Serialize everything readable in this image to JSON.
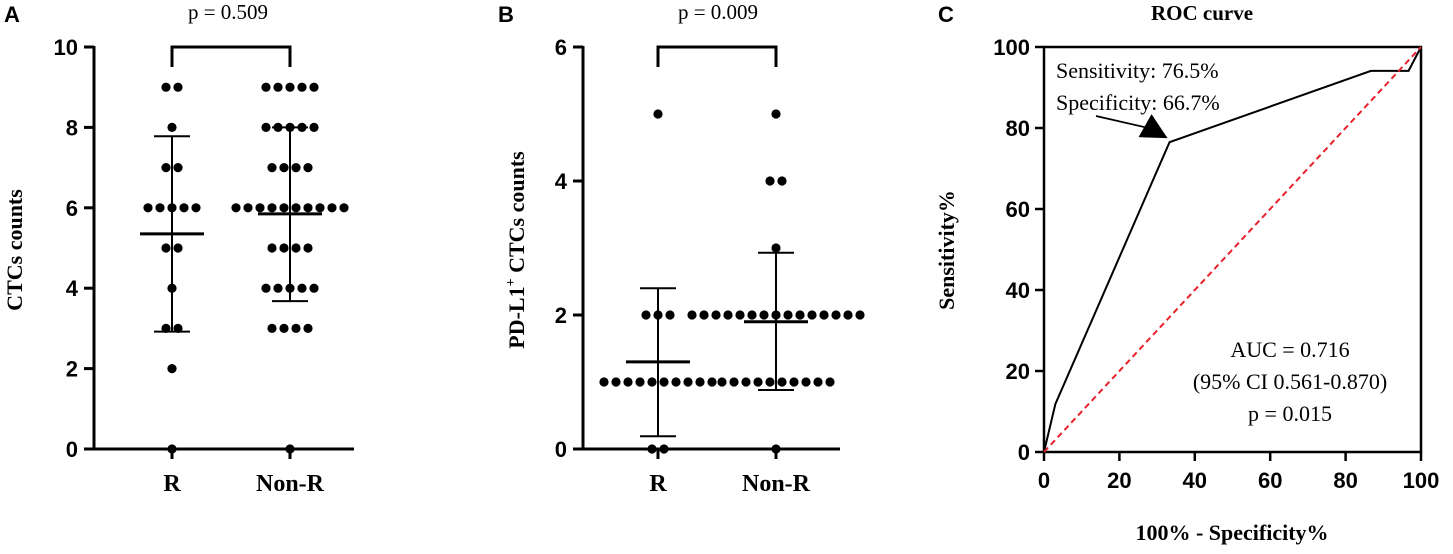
{
  "chart_data": [
    {
      "panel": "A",
      "type": "scatter",
      "ylabel": "CTCs counts",
      "ylim": [
        0,
        10
      ],
      "yticks": [
        "0",
        "2",
        "4",
        "6",
        "8",
        "10"
      ],
      "categories": [
        "R",
        "Non-R"
      ],
      "groups": [
        {
          "category": "R",
          "points": [
            9,
            9,
            8,
            7,
            7,
            6,
            6,
            6,
            6,
            6,
            5,
            5,
            4,
            3,
            3,
            2,
            0
          ],
          "mean": 5.35,
          "sd_low": 2.92,
          "sd_high": 7.78
        },
        {
          "category": "Non-R",
          "points": [
            9,
            9,
            9,
            9,
            9,
            8,
            8,
            8,
            8,
            8,
            7,
            7,
            7,
            7,
            6,
            6,
            6,
            6,
            6,
            6,
            6,
            6,
            6,
            6,
            5,
            5,
            5,
            5,
            4,
            4,
            4,
            4,
            4,
            3,
            3,
            3,
            3,
            0
          ],
          "mean": 5.85,
          "sd_low": 3.68,
          "sd_high": 8.0
        }
      ],
      "comparison": {
        "label": "p = 0.509"
      }
    },
    {
      "panel": "B",
      "type": "scatter",
      "ylabel_main": "PD-L1",
      "ylabel_sup": "+",
      "ylabel_rest": " CTCs counts",
      "ylim": [
        0,
        6
      ],
      "yticks": [
        "0",
        "2",
        "4",
        "6"
      ],
      "categories": [
        "R",
        "Non-R"
      ],
      "groups": [
        {
          "category": "R",
          "points": [
            5,
            2,
            2,
            2,
            1,
            1,
            1,
            1,
            1,
            1,
            1,
            1,
            1,
            1,
            0,
            0
          ],
          "mean": 1.3,
          "sd_low": 0.19,
          "sd_high": 2.4
        },
        {
          "category": "Non-R",
          "points": [
            5,
            4,
            4,
            3,
            2,
            2,
            2,
            2,
            2,
            2,
            2,
            2,
            2,
            2,
            2,
            2,
            2,
            2,
            2,
            1,
            1,
            1,
            1,
            1,
            1,
            1,
            1,
            1,
            1,
            0
          ],
          "mean": 1.9,
          "sd_low": 0.88,
          "sd_high": 2.93
        }
      ],
      "comparison": {
        "label": "p = 0.009"
      }
    },
    {
      "panel": "C",
      "type": "line",
      "title": "ROC curve",
      "xlabel": "100% - Specificity%",
      "ylabel": "Sensitivity%",
      "xlim": [
        0,
        100
      ],
      "ylim": [
        0,
        100
      ],
      "xticks": [
        "0",
        "20",
        "40",
        "60",
        "80",
        "100"
      ],
      "yticks": [
        "0",
        "20",
        "40",
        "60",
        "80",
        "100"
      ],
      "series": [
        {
          "x": [
            0,
            3,
            33.3,
            86.7,
            96.7,
            100
          ],
          "y": [
            0,
            11.8,
            76.5,
            94.1,
            94.1,
            100
          ],
          "color": "#000000"
        },
        {
          "x": [
            0,
            100
          ],
          "y": [
            0,
            100
          ],
          "color": "#e8202a",
          "dashed": true
        }
      ],
      "cutoff_annotation": {
        "lines": [
          "Sensitivity: 76.5%",
          "Specificity: 66.7%"
        ],
        "point": [
          33.3,
          76.5
        ]
      },
      "stats": [
        "AUC = 0.716",
        "(95% CI 0.561-0.870)",
        "p = 0.015"
      ]
    }
  ]
}
